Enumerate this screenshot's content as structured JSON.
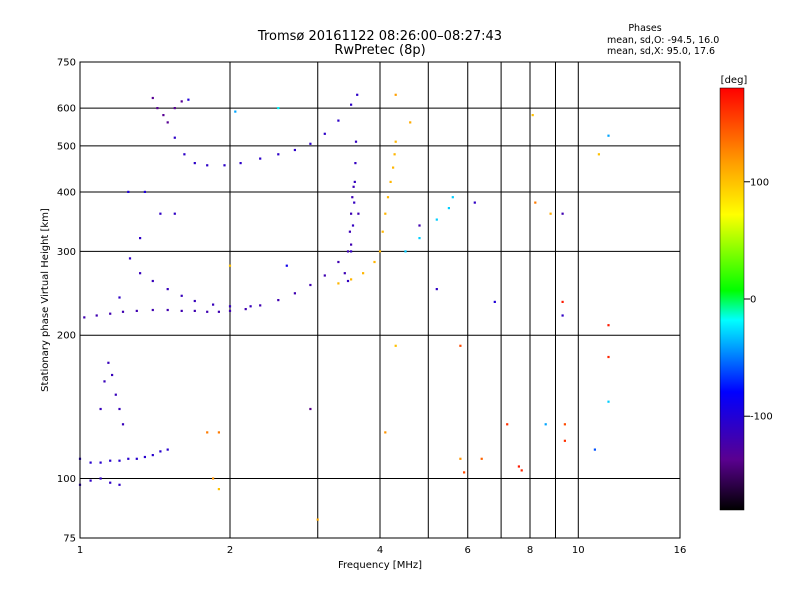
{
  "chart_data": {
    "type": "scatter",
    "title": "Tromsø 20161122 08:26:00–08:27:43",
    "subtitle": "RwPretec (8p)",
    "xlabel": "Frequency [MHz]",
    "ylabel": "Stationary phase Virtual Height [km]",
    "x_scale": "log",
    "y_scale": "log",
    "xlim": [
      1,
      16
    ],
    "ylim": [
      75,
      750
    ],
    "x_ticks": [
      1,
      2,
      4,
      6,
      8,
      10,
      16
    ],
    "x_gridlines": [
      1,
      2,
      3,
      4,
      5,
      6,
      7,
      8,
      9,
      10,
      16
    ],
    "y_ticks": [
      75,
      100,
      200,
      300,
      400,
      500,
      600,
      750
    ],
    "y_gridlines": [
      100,
      200,
      300,
      400,
      500,
      600
    ],
    "grid": true,
    "phase_info": {
      "heading": "Phases",
      "line_o": "mean, sd,O:  -94.5, 16.0",
      "line_x": "mean, sd,X:  95.0, 17.6"
    },
    "colorbar": {
      "label": "[deg]",
      "range": [
        -180,
        180
      ],
      "ticks": [
        100,
        0,
        -100
      ],
      "colormap": "rainbow"
    },
    "traces": [
      {
        "x": [
          1.02,
          1.08,
          1.15,
          1.22,
          1.3,
          1.4,
          1.5,
          1.6,
          1.7,
          1.8,
          1.9,
          2.0,
          2.15,
          2.3,
          2.5,
          2.7,
          2.9,
          3.1,
          3.3,
          3.5,
          3.62
        ],
        "y": [
          218,
          220,
          222,
          224,
          225,
          226,
          226,
          225,
          225,
          224,
          224,
          225,
          227,
          231,
          237,
          245,
          255,
          267,
          285,
          310,
          360
        ],
        "phase": -120
      },
      {
        "x": [
          1.32,
          1.4,
          1.5,
          1.6,
          1.7,
          1.85,
          2.0,
          2.2
        ],
        "y": [
          270,
          260,
          250,
          242,
          236,
          232,
          230,
          230
        ],
        "phase": -115
      },
      {
        "x": [
          1.2,
          1.26,
          1.32
        ],
        "y": [
          240,
          290,
          320
        ],
        "phase": -110
      },
      {
        "x": [
          3.45,
          3.5,
          3.53,
          3.55,
          3.56,
          3.57,
          3.58
        ],
        "y": [
          260,
          300,
          340,
          380,
          420,
          460,
          510
        ],
        "phase": -112
      },
      {
        "x": [
          3.4,
          3.45,
          3.48,
          3.5,
          3.52,
          3.54
        ],
        "y": [
          270,
          300,
          330,
          360,
          390,
          410
        ],
        "phase": -118
      },
      {
        "x": [
          1.55,
          1.62,
          1.7,
          1.8,
          1.95,
          2.1,
          2.3,
          2.5,
          2.7,
          2.9,
          3.1,
          3.3,
          3.5,
          3.6
        ],
        "y": [
          520,
          480,
          460,
          455,
          455,
          460,
          470,
          480,
          490,
          505,
          530,
          565,
          610,
          640
        ],
        "phase": -108
      },
      {
        "x": [
          1.4,
          1.43,
          1.47,
          1.5,
          1.55,
          1.6
        ],
        "y": [
          630,
          600,
          580,
          560,
          600,
          620
        ],
        "phase": -135
      },
      {
        "x": [
          3.3,
          3.5,
          3.7,
          3.9,
          4.0,
          4.05,
          4.1,
          4.15,
          4.2,
          4.25,
          4.28,
          4.3
        ],
        "y": [
          257,
          262,
          270,
          285,
          300,
          330,
          360,
          390,
          420,
          450,
          480,
          510
        ],
        "phase": 105
      },
      {
        "x": [
          4.5,
          4.8,
          5.2,
          5.5,
          5.6
        ],
        "y": [
          300,
          320,
          350,
          370,
          390
        ],
        "phase": -30
      },
      {
        "x": [
          1.0,
          1.05,
          1.1,
          1.15,
          1.2,
          1.25,
          1.3,
          1.35,
          1.4,
          1.45,
          1.5
        ],
        "y": [
          110,
          108,
          108,
          109,
          109,
          110,
          110,
          111,
          112,
          114,
          115
        ],
        "phase": -105
      },
      {
        "x": [
          1.1,
          1.12,
          1.14,
          1.16,
          1.18,
          1.2,
          1.22
        ],
        "y": [
          140,
          160,
          175,
          165,
          150,
          140,
          130
        ],
        "phase": -115
      },
      {
        "x": [
          1.0,
          1.05,
          1.1,
          1.15,
          1.2
        ],
        "y": [
          97,
          99,
          100,
          98,
          97
        ],
        "phase": -110
      }
    ],
    "points": [
      {
        "x": 4.6,
        "y": 560,
        "phase": 110
      },
      {
        "x": 4.3,
        "y": 640,
        "phase": 115
      },
      {
        "x": 5.8,
        "y": 190,
        "phase": 150
      },
      {
        "x": 6.8,
        "y": 235,
        "phase": -100
      },
      {
        "x": 6.4,
        "y": 110,
        "phase": 140
      },
      {
        "x": 7.2,
        "y": 130,
        "phase": 160
      },
      {
        "x": 7.6,
        "y": 106,
        "phase": 170
      },
      {
        "x": 7.7,
        "y": 104,
        "phase": 165
      },
      {
        "x": 8.1,
        "y": 580,
        "phase": 100
      },
      {
        "x": 8.2,
        "y": 380,
        "phase": 130
      },
      {
        "x": 8.8,
        "y": 360,
        "phase": 110
      },
      {
        "x": 9.3,
        "y": 360,
        "phase": -120
      },
      {
        "x": 9.3,
        "y": 235,
        "phase": 170
      },
      {
        "x": 9.3,
        "y": 220,
        "phase": -110
      },
      {
        "x": 8.6,
        "y": 130,
        "phase": -40
      },
      {
        "x": 9.4,
        "y": 120,
        "phase": 160
      },
      {
        "x": 9.4,
        "y": 130,
        "phase": 150
      },
      {
        "x": 11.0,
        "y": 480,
        "phase": 100
      },
      {
        "x": 11.5,
        "y": 525,
        "phase": -40
      },
      {
        "x": 11.5,
        "y": 210,
        "phase": 170
      },
      {
        "x": 11.5,
        "y": 180,
        "phase": 165
      },
      {
        "x": 11.5,
        "y": 145,
        "phase": -30
      },
      {
        "x": 10.8,
        "y": 115,
        "phase": -60
      },
      {
        "x": 4.8,
        "y": 340,
        "phase": -120
      },
      {
        "x": 6.2,
        "y": 380,
        "phase": -110
      },
      {
        "x": 5.2,
        "y": 250,
        "phase": -110
      },
      {
        "x": 4.1,
        "y": 125,
        "phase": 120
      },
      {
        "x": 3.0,
        "y": 82,
        "phase": 110
      },
      {
        "x": 2.9,
        "y": 140,
        "phase": -140
      },
      {
        "x": 1.9,
        "y": 95,
        "phase": 100
      },
      {
        "x": 1.8,
        "y": 125,
        "phase": 130
      },
      {
        "x": 1.85,
        "y": 100,
        "phase": 120
      },
      {
        "x": 2.05,
        "y": 590,
        "phase": -40
      },
      {
        "x": 2.5,
        "y": 600,
        "phase": -20
      },
      {
        "x": 2.0,
        "y": 280,
        "phase": 100
      },
      {
        "x": 2.6,
        "y": 280,
        "phase": -90
      },
      {
        "x": 4.3,
        "y": 190,
        "phase": 100
      },
      {
        "x": 5.8,
        "y": 110,
        "phase": 120
      },
      {
        "x": 5.9,
        "y": 103,
        "phase": 150
      },
      {
        "x": 1.25,
        "y": 400,
        "phase": -100
      },
      {
        "x": 1.35,
        "y": 400,
        "phase": -100
      },
      {
        "x": 1.45,
        "y": 360,
        "phase": -110
      },
      {
        "x": 1.55,
        "y": 360,
        "phase": -110
      },
      {
        "x": 1.65,
        "y": 625,
        "phase": -100
      },
      {
        "x": 1.9,
        "y": 125,
        "phase": 130
      }
    ]
  }
}
